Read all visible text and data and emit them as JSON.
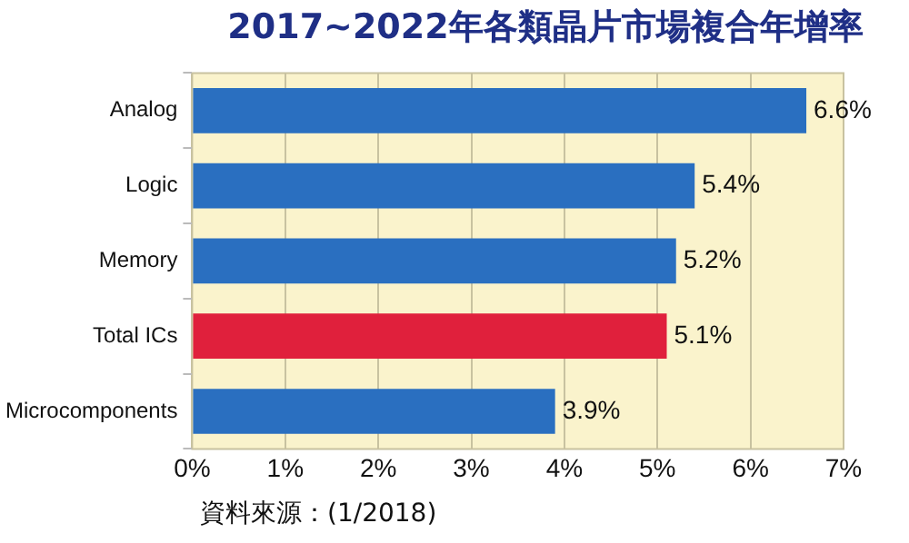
{
  "chart_data": {
    "type": "bar",
    "orientation": "horizontal",
    "title": "2017~2022年各類晶片市場複合年增率",
    "categories": [
      "Analog",
      "Logic",
      "Memory",
      "Total ICs",
      "Microcomponents"
    ],
    "values": [
      6.6,
      5.4,
      5.2,
      5.1,
      3.9
    ],
    "colors": [
      "#2a6fc0",
      "#2a6fc0",
      "#2a6fc0",
      "#e0203c",
      "#2a6fc0"
    ],
    "value_labels": [
      "6.6%",
      "5.4%",
      "5.2%",
      "5.1%",
      "3.9%"
    ],
    "xlim": [
      0,
      7
    ],
    "xticks": [
      {
        "value": 0,
        "label": "0%"
      },
      {
        "value": 1,
        "label": "1%"
      },
      {
        "value": 2,
        "label": "2%"
      },
      {
        "value": 3,
        "label": "3%"
      },
      {
        "value": 4,
        "label": "4%"
      },
      {
        "value": 5,
        "label": "5%"
      },
      {
        "value": 6,
        "label": "6%"
      },
      {
        "value": 7,
        "label": "7%"
      }
    ],
    "grid": "x",
    "legend": false,
    "annotations": [
      "資料來源：(1/2018)"
    ]
  }
}
